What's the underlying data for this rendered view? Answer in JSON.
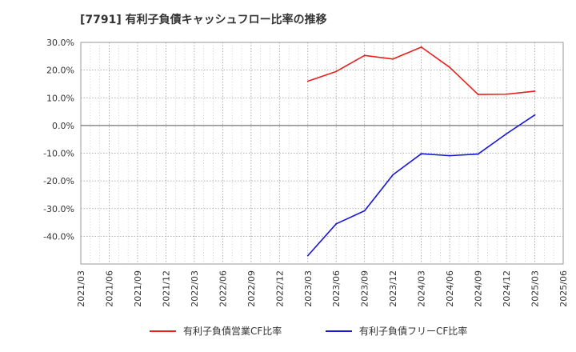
{
  "chart_data": {
    "type": "line",
    "title": "[7791]  有利子負債キャッシュフロー比率の推移",
    "xlabel": "",
    "ylabel": "",
    "ylim": [
      -50,
      30
    ],
    "grid": true,
    "legend_position": "bottom",
    "x_ticks": [
      "2021/03",
      "2021/06",
      "2021/09",
      "2021/12",
      "2022/03",
      "2022/06",
      "2022/09",
      "2022/12",
      "2023/03",
      "2023/06",
      "2023/09",
      "2023/12",
      "2024/03",
      "2024/06",
      "2024/09",
      "2024/12",
      "2025/03",
      "2025/06"
    ],
    "y_ticks": [
      30,
      20,
      10,
      0,
      -10,
      -20,
      -30,
      -40
    ],
    "y_tick_labels": [
      "30.0%",
      "20.0%",
      "10.0%",
      "0.0%",
      "-10.0%",
      "-20.0%",
      "-30.0%",
      "-40.0%"
    ],
    "x": [
      "2023/03",
      "2023/06",
      "2023/09",
      "2023/12",
      "2024/03",
      "2024/06",
      "2024/09",
      "2024/12",
      "2025/03"
    ],
    "series": [
      {
        "name": "有利子負債営業CF比率",
        "color": "#e8201e",
        "values": [
          16.0,
          19.5,
          25.3,
          24.0,
          28.3,
          21.0,
          11.2,
          11.3,
          12.4
        ]
      },
      {
        "name": "有利子負債フリーCF比率",
        "color": "#1717d6",
        "values": [
          -47.0,
          -35.5,
          -30.8,
          -17.8,
          -10.2,
          -10.9,
          -10.3,
          -3.0,
          3.8
        ]
      }
    ]
  }
}
